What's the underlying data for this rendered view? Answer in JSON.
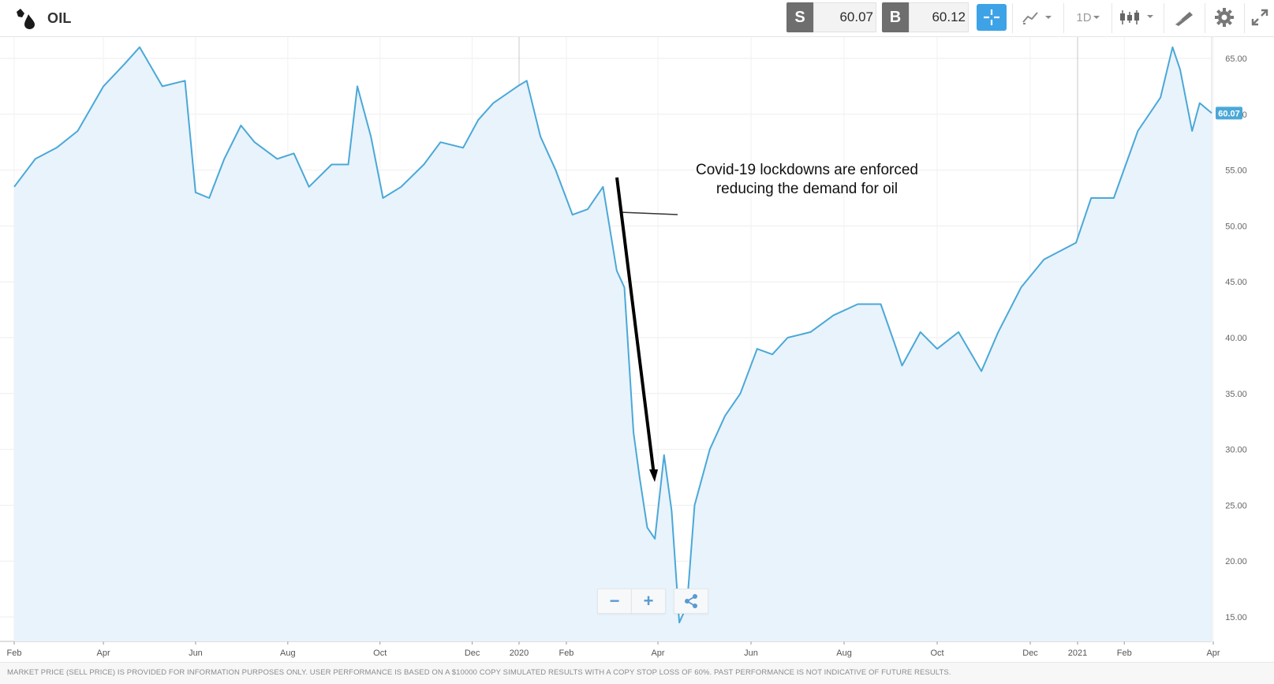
{
  "header": {
    "title": "OIL",
    "sell_label": "S",
    "sell_price": "60.07",
    "buy_label": "B",
    "buy_price": "60.12",
    "timeframe": "1D",
    "icons": [
      "oil-drop-icon",
      "crosshair-icon",
      "line-chart-icon",
      "candlestick-icon",
      "draw-tool-icon",
      "gear-icon",
      "expand-icon"
    ]
  },
  "colors": {
    "accent": "#3ea3e6",
    "line": "#4aa8d8",
    "area": "#e9f3fb",
    "badge": "#6e6e6e"
  },
  "annotation": {
    "line1": "Covid-19 lockdowns are enforced",
    "line2": "reducing the demand for oil"
  },
  "controls": {
    "zoom_out": "−",
    "zoom_in": "+"
  },
  "current_price_tag": "60.07",
  "footer": {
    "disclaimer": "MARKET PRICE (SELL PRICE) IS PROVIDED FOR INFORMATION PURPOSES ONLY. USER PERFORMANCE IS BASED ON A $10000 COPY SIMULATED RESULTS WITH A COPY STOP LOSS OF 60%. PAST PERFORMANCE IS NOT INDICATIVE OF FUTURE RESULTS."
  },
  "chart_data": {
    "type": "area",
    "title": "",
    "xlabel": "",
    "ylabel": "",
    "ylim": [
      12.5,
      67
    ],
    "y_ticks": [
      "15.00",
      "20.00",
      "25.00",
      "30.00",
      "35.00",
      "40.00",
      "45.00",
      "50.00",
      "55.00",
      "60.00",
      "65.00"
    ],
    "x_ticks": [
      "Feb",
      "Apr",
      "Jun",
      "Aug",
      "Oct",
      "Dec",
      "2020",
      "Feb",
      "Apr",
      "Jun",
      "Aug",
      "Oct",
      "Dec",
      "2021",
      "Feb",
      "Apr"
    ],
    "grid": true,
    "series": [
      {
        "x": [
          "2019-02-01",
          "2019-02-15",
          "2019-03-01",
          "2019-03-15",
          "2019-04-01",
          "2019-04-15",
          "2019-04-25",
          "2019-05-10",
          "2019-05-25",
          "2019-06-01",
          "2019-06-10",
          "2019-06-20",
          "2019-07-01",
          "2019-07-10",
          "2019-07-25",
          "2019-08-05",
          "2019-08-15",
          "2019-08-30",
          "2019-09-10",
          "2019-09-16",
          "2019-09-25",
          "2019-10-03",
          "2019-10-15",
          "2019-10-30",
          "2019-11-10",
          "2019-11-25",
          "2019-12-05",
          "2019-12-15",
          "2019-12-31",
          "2020-01-06",
          "2020-01-15",
          "2020-01-25",
          "2020-02-05",
          "2020-02-15",
          "2020-02-25",
          "2020-03-05",
          "2020-03-10",
          "2020-03-16",
          "2020-03-20",
          "2020-03-25",
          "2020-03-30",
          "2020-04-05",
          "2020-04-10",
          "2020-04-15",
          "2020-04-20",
          "2020-04-25",
          "2020-05-05",
          "2020-05-15",
          "2020-05-25",
          "2020-06-05",
          "2020-06-15",
          "2020-06-25",
          "2020-07-10",
          "2020-07-25",
          "2020-08-10",
          "2020-08-25",
          "2020-09-03",
          "2020-09-08",
          "2020-09-20",
          "2020-10-01",
          "2020-10-15",
          "2020-10-30",
          "2020-11-10",
          "2020-11-25",
          "2020-12-10",
          "2020-12-31",
          "2021-01-10",
          "2021-01-25",
          "2021-02-10",
          "2021-02-25",
          "2021-03-05",
          "2021-03-10",
          "2021-03-18",
          "2021-03-23",
          "2021-03-31"
        ],
        "y": [
          53.5,
          56.0,
          57.0,
          58.5,
          62.5,
          64.5,
          66.0,
          62.5,
          63.0,
          53.0,
          52.5,
          56.0,
          59.0,
          57.5,
          56.0,
          56.5,
          53.5,
          55.5,
          55.5,
          62.5,
          58.0,
          52.5,
          53.5,
          55.5,
          57.5,
          57.0,
          59.5,
          61.0,
          62.5,
          63.0,
          58.0,
          55.0,
          51.0,
          51.5,
          53.5,
          46.0,
          44.5,
          31.5,
          27.5,
          23.0,
          22.0,
          29.5,
          24.5,
          14.5,
          16.0,
          25.0,
          30.0,
          33.0,
          35.0,
          39.0,
          38.5,
          40.0,
          40.5,
          42.0,
          43.0,
          43.0,
          39.5,
          37.5,
          40.5,
          39.0,
          40.5,
          37.0,
          40.5,
          44.5,
          47.0,
          48.5,
          52.5,
          52.5,
          58.5,
          61.5,
          66.0,
          64.0,
          58.5,
          61.0,
          60.1
        ]
      }
    ]
  }
}
